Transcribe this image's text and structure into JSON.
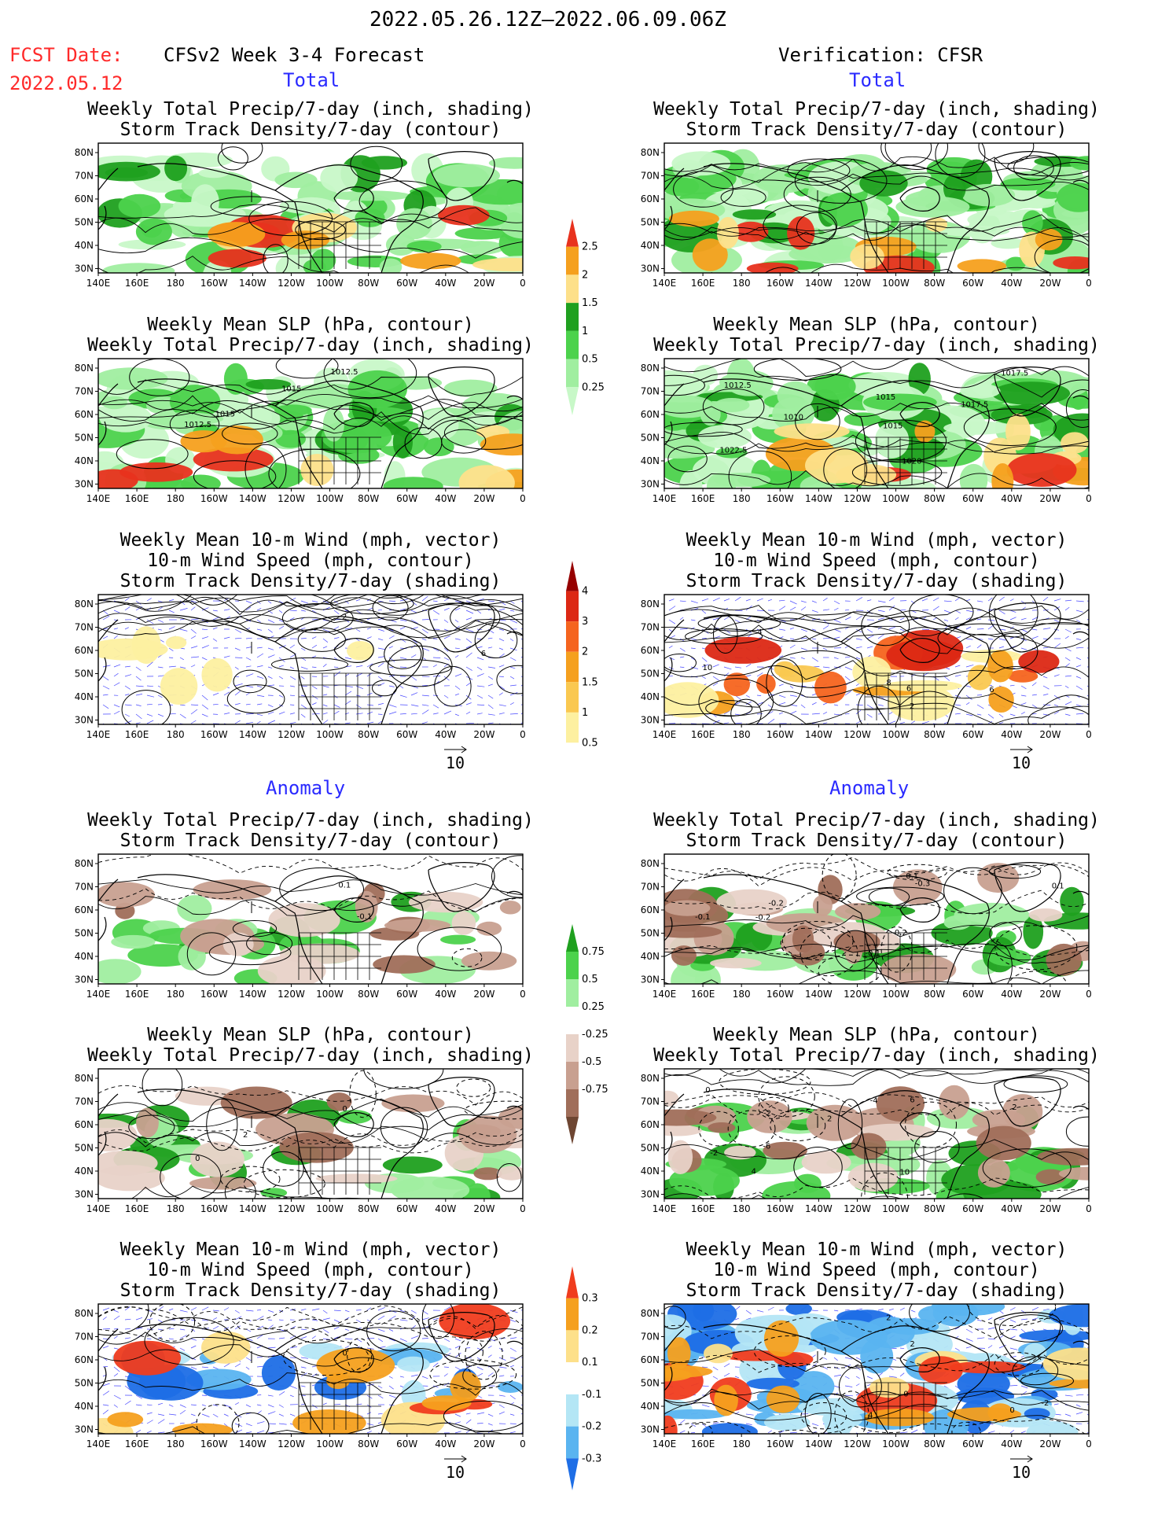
{
  "header": {
    "period": "2022.05.26.12Z–2022.06.09.06Z",
    "fcst_label": "FCST Date:",
    "fcst_date": "2022.05.12",
    "left_title": "CFSv2 Week 3-4 Forecast",
    "right_title": "Verification: CFSR"
  },
  "sections": {
    "total": "Total",
    "anomaly": "Anomaly"
  },
  "panel_titles": {
    "precip_storm": [
      "Weekly Total Precip/7-day (inch, shading)",
      "Storm Track Density/7-day (contour)"
    ],
    "slp_precip": [
      "Weekly Mean SLP (hPa, contour)",
      "Weekly Total Precip/7-day (inch, shading)"
    ],
    "wind": [
      "Weekly Mean 10-m Wind (mph, vector)",
      "10-m Wind Speed (mph, contour)",
      "Storm Track Density/7-day (shading)"
    ]
  },
  "axes": {
    "lat_labels": [
      "80N",
      "70N",
      "60N",
      "50N",
      "40N",
      "30N"
    ],
    "lon_labels": [
      "140E",
      "160E",
      "180",
      "160W",
      "140W",
      "120W",
      "100W",
      "80W",
      "60W",
      "40W",
      "20W",
      "0"
    ]
  },
  "vector_ref": "10",
  "colorbars": {
    "precip_total": {
      "labels": [
        "2.5",
        "2",
        "1.5",
        "1",
        "0.5",
        "0.25"
      ],
      "colors": [
        "#e8321e",
        "#f5a01e",
        "#fde08a",
        "#1fa01f",
        "#4cd24c",
        "#a0eea0",
        "#c8f8c8"
      ]
    },
    "storm_total": {
      "labels": [
        "4",
        "3",
        "2",
        "1.5",
        "1",
        "0.5"
      ],
      "colors": [
        "#960000",
        "#dc2814",
        "#f5641e",
        "#f5a01e",
        "#fac850",
        "#fdf0a0",
        "#ffffff"
      ]
    },
    "precip_anom": {
      "labels": [
        "0.75",
        "0.5",
        "0.25",
        "-0.25",
        "-0.5",
        "-0.75"
      ],
      "colors": [
        "#1fa01f",
        "#4cd24c",
        "#a0eea0",
        "#ffffff",
        "#e8d2c8",
        "#c8a090",
        "#a06e5a",
        "#6e4632"
      ]
    },
    "storm_anom": {
      "labels": [
        "0.3",
        "0.2",
        "0.1",
        "-0.1",
        "-0.2",
        "-0.3"
      ],
      "colors": [
        "#f03c1e",
        "#f5a01e",
        "#fde08a",
        "#ffffff",
        "#b4e6f5",
        "#5ab4f0",
        "#1e6ee6"
      ]
    }
  },
  "contour_labels": {
    "l_slp_total": [
      "1012.5",
      "1015",
      "1012.5",
      "1015"
    ],
    "r_slp_total": [
      "1020",
      "1022.5",
      "1017.5",
      "1017.5",
      "1015",
      "1012.5",
      "1010",
      "1015"
    ],
    "l_wind_total": [
      "2",
      "6"
    ],
    "r_wind_total": [
      "2",
      "6",
      "8",
      "4",
      "10",
      "6"
    ],
    "r_precip_anom": [
      "0.1",
      "-0.1",
      "-0.2",
      "-0.3",
      "-0.2",
      "-0.1",
      "-0.2",
      "0.1"
    ],
    "l_precip_anom": [
      "0.1",
      "-0.1"
    ],
    "l_slp_anom": [
      "0",
      "2",
      "0"
    ],
    "r_slp_anom": [
      "6",
      "4",
      "2",
      "0",
      "-2",
      "-4",
      "-2",
      "-6",
      "2",
      "10"
    ],
    "l_wind_anom": [
      "0"
    ],
    "r_wind_anom": [
      "2",
      "0",
      "2",
      "4",
      "0",
      "-2"
    ]
  },
  "colors": {
    "accent_red": "#ff2a2a",
    "accent_blue": "#2a2aff"
  }
}
